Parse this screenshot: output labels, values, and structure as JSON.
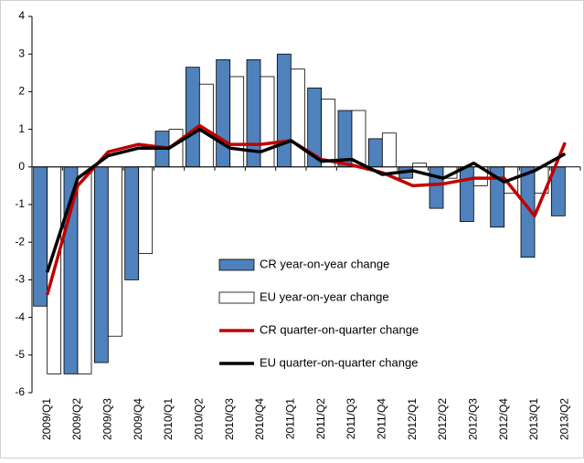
{
  "chart_data": {
    "type": "bar_line",
    "categories": [
      "2009/Q1",
      "2009/Q2",
      "2009/Q3",
      "2009/Q4",
      "2010/Q1",
      "2010/Q2",
      "2010/Q3",
      "2010/Q4",
      "2011/Q1",
      "2011/Q2",
      "2011/Q3",
      "2011/Q4",
      "2012/Q1",
      "2012/Q2",
      "2012/Q3",
      "2012/Q4",
      "2013/Q1",
      "2013/Q2"
    ],
    "series": [
      {
        "name": "CR year-on-year change",
        "kind": "bar",
        "color": "#4f81bd",
        "values": [
          -3.7,
          -5.5,
          -5.2,
          -3.0,
          0.95,
          2.65,
          2.85,
          2.85,
          3.0,
          2.1,
          1.5,
          0.75,
          -0.3,
          -1.1,
          -1.45,
          -1.6,
          -2.4,
          -1.3
        ]
      },
      {
        "name": "EU year-on-year change",
        "kind": "bar",
        "color": "#ffffff",
        "values": [
          -5.5,
          -5.5,
          -4.5,
          -2.3,
          1.0,
          2.2,
          2.4,
          2.4,
          2.6,
          1.8,
          1.5,
          0.9,
          0.1,
          -0.3,
          -0.5,
          -0.7,
          -0.7,
          null
        ]
      },
      {
        "name": "CR quarter-on-quarter change",
        "kind": "line",
        "color": "#c00000",
        "values": [
          -3.4,
          -0.5,
          0.4,
          0.6,
          0.5,
          1.1,
          0.6,
          0.6,
          0.7,
          0.2,
          0.05,
          -0.15,
          -0.5,
          -0.45,
          -0.3,
          -0.3,
          -1.3,
          0.65
        ]
      },
      {
        "name": "EU quarter-on-quarter change",
        "kind": "line",
        "color": "#000000",
        "values": [
          -2.8,
          -0.3,
          0.3,
          0.5,
          0.5,
          1.0,
          0.5,
          0.4,
          0.7,
          0.15,
          0.2,
          -0.2,
          -0.1,
          -0.3,
          0.1,
          -0.4,
          -0.1,
          0.35
        ]
      }
    ],
    "ylim": [
      -6,
      4
    ],
    "yticks": [
      -6,
      -5,
      -4,
      -3,
      -2,
      -1,
      0,
      1,
      2,
      3,
      4
    ]
  }
}
